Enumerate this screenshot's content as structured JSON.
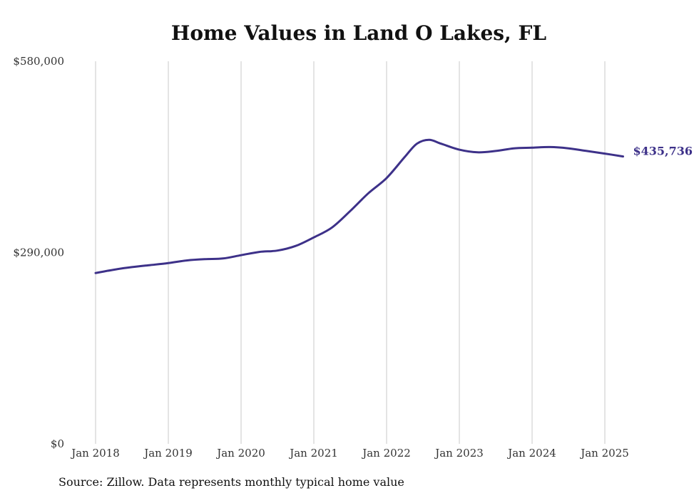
{
  "chart_data": {
    "type": "line",
    "title": "Home Values in Land O Lakes, FL",
    "xlabel": "",
    "ylabel": "",
    "ylim": [
      0,
      580000
    ],
    "xlim": [
      "2018-01",
      "2025-04"
    ],
    "yticks": [
      0,
      290000,
      580000
    ],
    "ytick_labels": [
      "$0",
      "$290,000",
      "$580,000"
    ],
    "xtick_labels": [
      "Jan 2018",
      "Jan 2019",
      "Jan 2020",
      "Jan 2021",
      "Jan 2022",
      "Jan 2023",
      "Jan 2024",
      "Jan 2025"
    ],
    "grid": "vertical",
    "line_color": "#3d3189",
    "series": [
      {
        "name": "",
        "x": [
          "2018-01",
          "2018-04",
          "2018-07",
          "2018-10",
          "2019-01",
          "2019-04",
          "2019-07",
          "2019-10",
          "2020-01",
          "2020-04",
          "2020-07",
          "2020-10",
          "2021-01",
          "2021-04",
          "2021-07",
          "2021-10",
          "2022-01",
          "2022-04",
          "2022-06",
          "2022-08",
          "2022-10",
          "2023-01",
          "2023-04",
          "2023-07",
          "2023-10",
          "2024-01",
          "2024-04",
          "2024-07",
          "2024-10",
          "2025-01",
          "2025-04"
        ],
        "values": [
          259000,
          264000,
          268000,
          271000,
          274000,
          278000,
          280000,
          281000,
          286000,
          291000,
          293000,
          300000,
          313000,
          328000,
          353000,
          380000,
          403000,
          435000,
          455000,
          461000,
          455000,
          446000,
          442000,
          444000,
          448000,
          449000,
          450000,
          448000,
          444000,
          440000,
          435736
        ]
      }
    ],
    "end_label": "$435,736"
  },
  "source": "Source: Zillow. Data represents monthly typical home value"
}
